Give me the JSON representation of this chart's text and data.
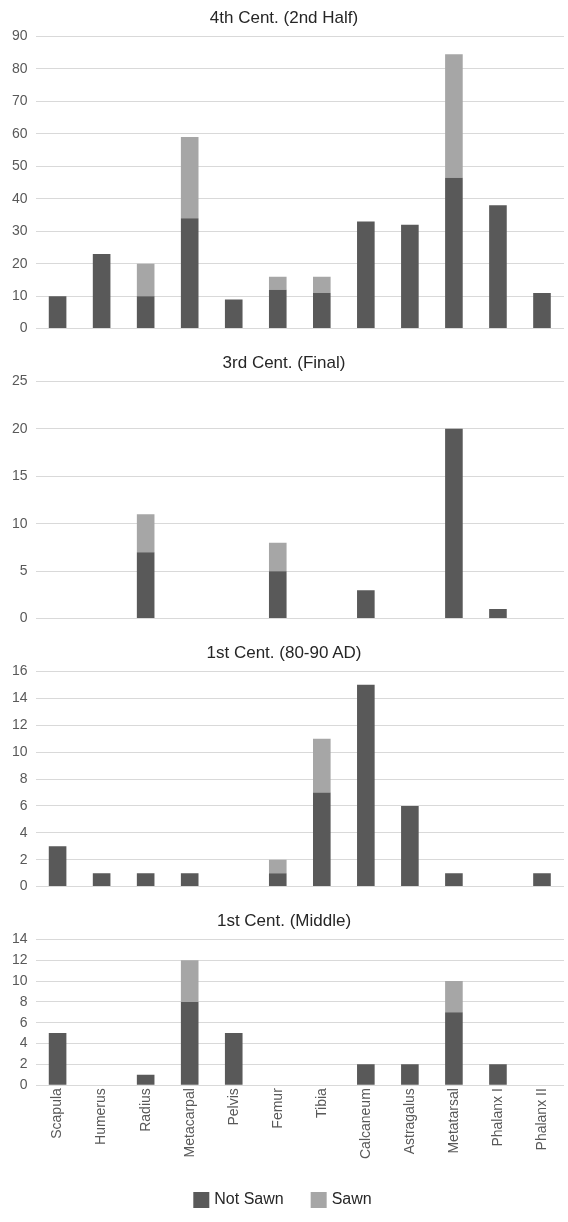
{
  "chart_data": [
    {
      "type": "bar",
      "title": "4th Cent. (2nd Half)",
      "stacked": true,
      "categories": [
        null,
        null,
        null,
        null,
        null,
        null,
        null,
        null,
        null,
        null,
        null,
        null
      ],
      "series": [
        {
          "color": "#595959",
          "values": [
            10,
            23,
            10,
            34,
            9,
            12,
            11,
            33,
            32,
            46.5,
            38,
            11
          ]
        },
        {
          "color": "#a6a6a6",
          "values": [
            0,
            0,
            10,
            25,
            0,
            4,
            5,
            0,
            0,
            38,
            0,
            0
          ]
        }
      ],
      "ylim": [
        0,
        90
      ],
      "yticks": [
        0,
        10,
        20,
        30,
        40,
        50,
        60,
        70,
        80,
        90
      ],
      "grid": "y",
      "tick_labels": "y",
      "legend": false
    },
    {
      "type": "bar",
      "title": "3rd Cent. (Final)",
      "stacked": true,
      "categories": [
        null,
        null,
        null,
        null,
        null,
        null,
        null,
        null,
        null,
        null,
        null,
        null
      ],
      "series": [
        {
          "color": "#595959",
          "values": [
            0,
            0,
            7,
            0,
            0,
            5,
            0,
            3,
            0,
            20,
            1,
            0
          ]
        },
        {
          "color": "#a6a6a6",
          "values": [
            0,
            0,
            4,
            0,
            0,
            3,
            0,
            0,
            0,
            0,
            0,
            0
          ]
        }
      ],
      "ylim": [
        0,
        25
      ],
      "yticks": [
        0,
        5,
        10,
        15,
        20,
        25
      ],
      "grid": "y",
      "tick_labels": "y",
      "legend": false
    },
    {
      "type": "bar",
      "title": "1st Cent. (80-90 AD)",
      "stacked": true,
      "categories": [
        null,
        null,
        null,
        null,
        null,
        null,
        null,
        null,
        null,
        null,
        null,
        null
      ],
      "series": [
        {
          "color": "#595959",
          "values": [
            3,
            1,
            1,
            1,
            0,
            1,
            7,
            15,
            6,
            1,
            0,
            1
          ]
        },
        {
          "color": "#a6a6a6",
          "values": [
            0,
            0,
            0,
            0,
            0,
            1,
            4,
            0,
            0,
            0,
            0,
            0
          ]
        }
      ],
      "ylim": [
        0,
        16
      ],
      "yticks": [
        0,
        2,
        4,
        6,
        8,
        10,
        12,
        14,
        16
      ],
      "grid": "y",
      "tick_labels": "y",
      "legend": false
    },
    {
      "type": "bar",
      "title": "1st Cent. (Middle)",
      "stacked": true,
      "categories": [
        "Scapula",
        "Humerus",
        "Radius",
        "Metacarpal",
        "Pelvis",
        "Femur",
        "Tibia",
        "Calcaneum",
        "Astragalus",
        "Metatarsal",
        "Phalanx I",
        "Phalanx II"
      ],
      "series": [
        {
          "name": "Not Sawn",
          "color": "#595959",
          "values": [
            5,
            0,
            1,
            8,
            5,
            0,
            0,
            2,
            2,
            7,
            2,
            0
          ]
        },
        {
          "name": "Sawn",
          "color": "#a6a6a6",
          "values": [
            0,
            0,
            0,
            4,
            0,
            0,
            0,
            0,
            0,
            3,
            0,
            0
          ]
        }
      ],
      "ylim": [
        0,
        14
      ],
      "yticks": [
        0,
        2,
        4,
        6,
        8,
        10,
        12,
        14
      ],
      "grid": "y",
      "legend": "bottom"
    }
  ]
}
